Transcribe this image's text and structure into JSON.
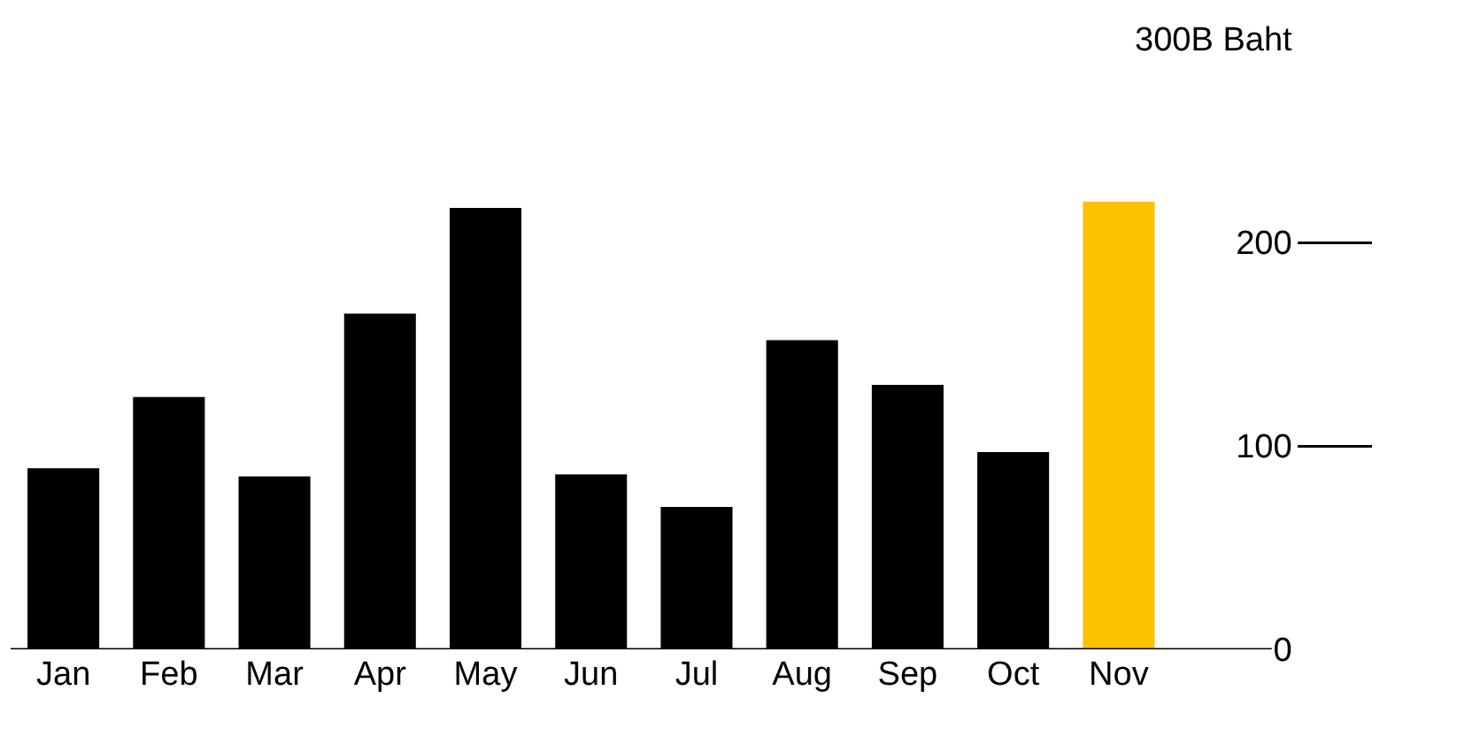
{
  "chart_data": {
    "type": "bar",
    "categories": [
      "Jan",
      "Feb",
      "Mar",
      "Apr",
      "May",
      "Jun",
      "Jul",
      "Aug",
      "Sep",
      "Oct",
      "Nov"
    ],
    "values": [
      89,
      124,
      85,
      165,
      217,
      86,
      70,
      152,
      130,
      97,
      220
    ],
    "colors": [
      "#000000",
      "#000000",
      "#000000",
      "#000000",
      "#000000",
      "#000000",
      "#000000",
      "#000000",
      "#000000",
      "#000000",
      "#fcc200"
    ],
    "ylim": [
      0,
      300
    ],
    "yticks": [
      0,
      100,
      200,
      {
        "value": 300,
        "label": "300B Baht"
      }
    ],
    "grid": false
  }
}
